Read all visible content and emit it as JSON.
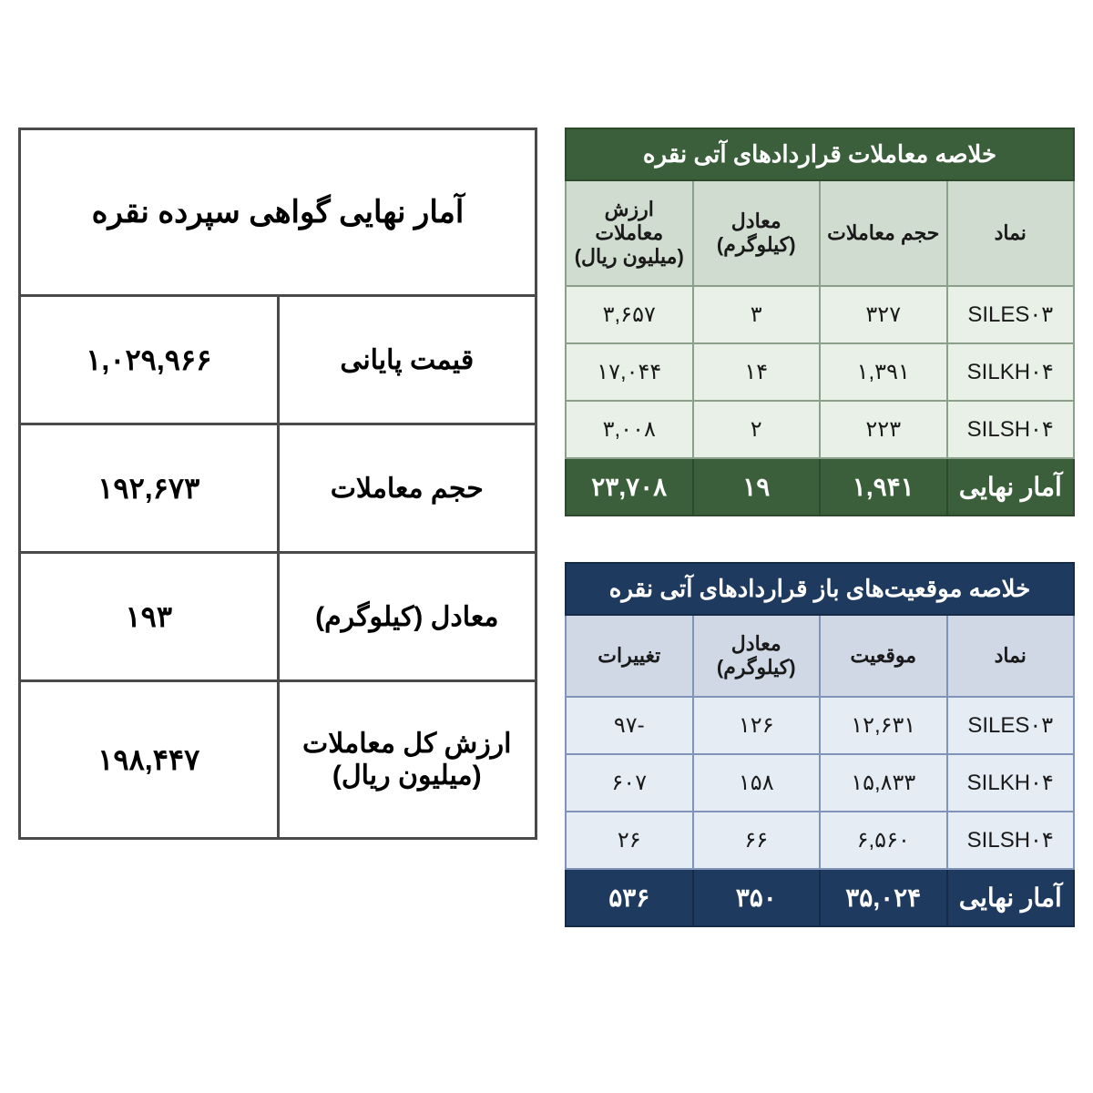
{
  "futures": {
    "title": "خلاصه معاملات قراردادهای آتی نقره",
    "columns": [
      "نماد",
      "حجم معاملات",
      "معادل (کیلوگرم)",
      "ارزش معاملات (میلیون ریال)"
    ],
    "rows": [
      {
        "symbol": "SILES۰۳",
        "volume": "۳۲۷",
        "kg": "۳",
        "value": "۳,۶۵۷"
      },
      {
        "symbol": "SILKH۰۴",
        "volume": "۱,۳۹۱",
        "kg": "۱۴",
        "value": "۱۷,۰۴۴"
      },
      {
        "symbol": "SILSH۰۴",
        "volume": "۲۲۳",
        "kg": "۲",
        "value": "۳,۰۰۸"
      }
    ],
    "total": {
      "label": "آمار نهایی",
      "volume": "۱,۹۴۱",
      "kg": "۱۹",
      "value": "۲۳,۷۰۸"
    },
    "colors": {
      "header_bg": "#3a5f3a",
      "sub_bg": "#d0dcd0",
      "row_bg": "#e8f0e8",
      "border": "#8aa08a"
    }
  },
  "positions": {
    "title": "خلاصه موقعیت‌های باز قراردادهای آتی نقره",
    "columns": [
      "نماد",
      "موقعیت",
      "معادل (کیلوگرم)",
      "تغییرات"
    ],
    "rows": [
      {
        "symbol": "SILES۰۳",
        "pos": "۱۲,۶۳۱",
        "kg": "۱۲۶",
        "chg": "-۹۷"
      },
      {
        "symbol": "SILKH۰۴",
        "pos": "۱۵,۸۳۳",
        "kg": "۱۵۸",
        "chg": "۶۰۷"
      },
      {
        "symbol": "SILSH۰۴",
        "pos": "۶,۵۶۰",
        "kg": "۶۶",
        "chg": "۲۶"
      }
    ],
    "total": {
      "label": "آمار نهایی",
      "pos": "۳۵,۰۲۴",
      "kg": "۳۵۰",
      "chg": "۵۳۶"
    },
    "colors": {
      "header_bg": "#1f3a5f",
      "sub_bg": "#d0d8e6",
      "row_bg": "#e6ecf4",
      "border": "#7f94b8"
    }
  },
  "summary": {
    "title": "آمار نهایی گواهی سپرده نقره",
    "rows": [
      {
        "label": "قیمت پایانی",
        "value": "۱,۰۲۹,۹۶۶"
      },
      {
        "label": "حجم معاملات",
        "value": "۱۹۲,۶۷۳"
      },
      {
        "label": "معادل (کیلوگرم)",
        "value": "۱۹۳"
      },
      {
        "label": "ارزش کل معاملات (میلیون ریال)",
        "value": "۱۹۸,۴۴۷"
      }
    ]
  }
}
